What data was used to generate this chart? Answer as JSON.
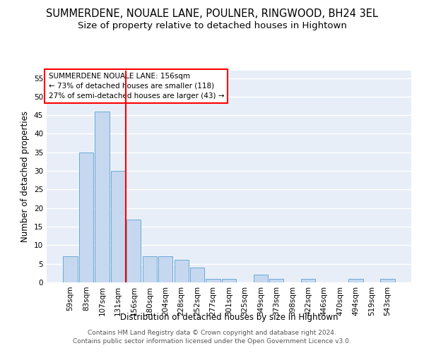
{
  "title": "SUMMERDENE, NOUALE LANE, POULNER, RINGWOOD, BH24 3EL",
  "subtitle": "Size of property relative to detached houses in Hightown",
  "xlabel": "Distribution of detached houses by size in Hightown",
  "ylabel": "Number of detached properties",
  "bar_color": "#c5d8f0",
  "bar_edge_color": "#6aaad4",
  "categories": [
    "59sqm",
    "83sqm",
    "107sqm",
    "131sqm",
    "156sqm",
    "180sqm",
    "204sqm",
    "228sqm",
    "252sqm",
    "277sqm",
    "301sqm",
    "325sqm",
    "349sqm",
    "373sqm",
    "398sqm",
    "422sqm",
    "446sqm",
    "470sqm",
    "494sqm",
    "519sqm",
    "543sqm"
  ],
  "values": [
    7,
    35,
    46,
    30,
    17,
    7,
    7,
    6,
    4,
    1,
    1,
    0,
    2,
    1,
    0,
    1,
    0,
    0,
    1,
    0,
    1
  ],
  "ylim": [
    0,
    57
  ],
  "yticks": [
    0,
    5,
    10,
    15,
    20,
    25,
    30,
    35,
    40,
    45,
    50,
    55
  ],
  "red_line_x": 3.5,
  "annotation_line1": "SUMMERDENE NOUALE LANE: 156sqm",
  "annotation_line2": "← 73% of detached houses are smaller (118)",
  "annotation_line3": "27% of semi-detached houses are larger (43) →",
  "footer1": "Contains HM Land Registry data © Crown copyright and database right 2024.",
  "footer2": "Contains public sector information licensed under the Open Government Licence v3.0.",
  "background_color": "#e8eef8",
  "grid_color": "#d0d8e8",
  "title_fontsize": 10.5,
  "subtitle_fontsize": 9.5,
  "axis_label_fontsize": 8.5,
  "tick_fontsize": 7.5,
  "annotation_fontsize": 7.5,
  "footer_fontsize": 6.5
}
